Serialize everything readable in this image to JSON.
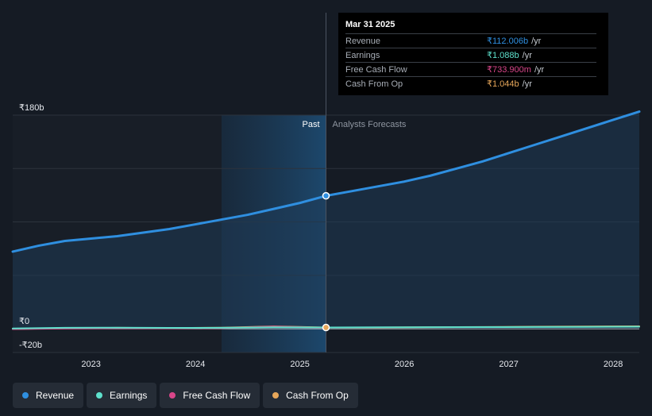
{
  "chart_data": {
    "type": "line",
    "ylim": [
      -20,
      180
    ],
    "xlim": [
      2022.25,
      2028.25
    ],
    "y_tick_labels": [
      {
        "value": 180,
        "label": "₹180b"
      },
      {
        "value": 0,
        "label": "₹0"
      },
      {
        "value": -20,
        "label": "-₹20b"
      }
    ],
    "x_tick_labels": [
      {
        "value": 2023,
        "label": "2023"
      },
      {
        "value": 2024,
        "label": "2024"
      },
      {
        "value": 2025,
        "label": "2025"
      },
      {
        "value": 2026,
        "label": "2026"
      },
      {
        "value": 2027,
        "label": "2027"
      },
      {
        "value": 2028,
        "label": "2028"
      }
    ],
    "past_label": "Past",
    "forecast_label": "Analysts Forecasts",
    "past_region_start": 2024.25,
    "divider_x": 2025.25,
    "series": [
      {
        "name": "Revenue",
        "color": "#2f8fe0",
        "x": [
          2022.25,
          2022.5,
          2022.75,
          2023.0,
          2023.25,
          2023.5,
          2023.75,
          2024.0,
          2024.25,
          2024.5,
          2024.75,
          2025.0,
          2025.25,
          2025.5,
          2025.75,
          2026.0,
          2026.25,
          2026.5,
          2026.75,
          2027.0,
          2027.25,
          2027.5,
          2027.75,
          2028.0,
          2028.25
        ],
        "y": [
          65,
          70,
          74,
          76,
          78,
          81,
          84,
          88,
          92,
          96,
          101,
          106,
          112,
          116,
          120,
          124,
          129,
          135,
          141,
          148,
          155,
          162,
          169,
          176,
          183
        ]
      },
      {
        "name": "Earnings",
        "color": "#5ee0cc",
        "x": [
          2022.25,
          2022.75,
          2023.25,
          2023.75,
          2024.25,
          2024.75,
          2025.25,
          2025.75,
          2026.25,
          2026.75,
          2027.25,
          2027.75,
          2028.25
        ],
        "y": [
          0.2,
          0.8,
          0.9,
          0.7,
          0.8,
          1.2,
          1.088,
          1.2,
          1.3,
          1.4,
          1.5,
          1.6,
          1.7
        ]
      },
      {
        "name": "Free Cash Flow",
        "color": "#d9468a",
        "x": [
          2022.25,
          2022.75,
          2023.25,
          2023.75,
          2024.25,
          2024.75,
          2025.25
        ],
        "y": [
          -0.3,
          0.2,
          0.5,
          0.4,
          0.6,
          1.8,
          0.734
        ]
      },
      {
        "name": "Cash From Op",
        "color": "#e7a75a",
        "x": [
          2022.25,
          2022.75,
          2023.25,
          2023.75,
          2024.25,
          2024.75,
          2025.25,
          2025.75,
          2026.25,
          2026.75,
          2027.25,
          2027.75,
          2028.25
        ],
        "y": [
          -0.2,
          0.4,
          0.8,
          0.6,
          0.9,
          2.0,
          1.044,
          1.1,
          1.3,
          1.5,
          1.7,
          1.9,
          2.1
        ]
      }
    ],
    "highlight_x": 2025.25
  },
  "tooltip": {
    "date": "Mar 31 2025",
    "rows": [
      {
        "label": "Revenue",
        "value": "₹112.006b",
        "unit": "/yr",
        "color": "#2f8fe0"
      },
      {
        "label": "Earnings",
        "value": "₹1.088b",
        "unit": "/yr",
        "color": "#5ee0cc"
      },
      {
        "label": "Free Cash Flow",
        "value": "₹733.900m",
        "unit": "/yr",
        "color": "#d9468a"
      },
      {
        "label": "Cash From Op",
        "value": "₹1.044b",
        "unit": "/yr",
        "color": "#e7a75a"
      }
    ]
  },
  "legend": [
    {
      "label": "Revenue",
      "color": "#2f8fe0"
    },
    {
      "label": "Earnings",
      "color": "#5ee0cc"
    },
    {
      "label": "Free Cash Flow",
      "color": "#d9468a"
    },
    {
      "label": "Cash From Op",
      "color": "#e7a75a"
    }
  ]
}
